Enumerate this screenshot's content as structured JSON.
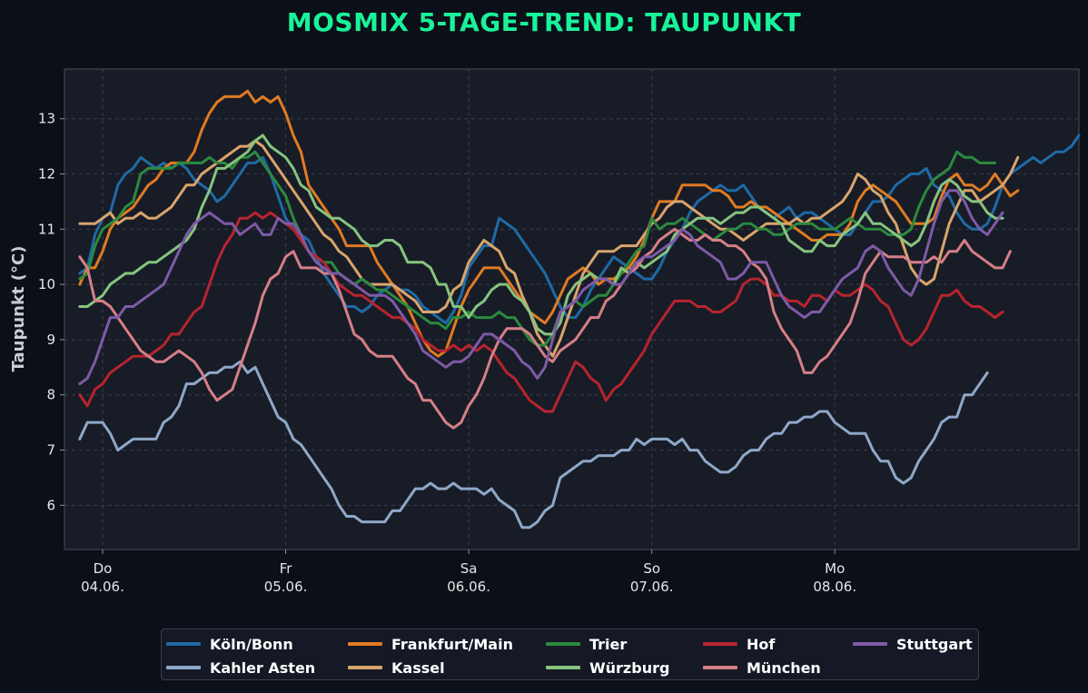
{
  "title": "MOSMIX 5-TAGE-TREND: TAUPUNKT",
  "colors": {
    "background": "#0b0f18",
    "plot_background": "#171c27",
    "title": "#19f29a"
  },
  "chart_data": {
    "type": "line",
    "title": "MOSMIX 5-TAGE-TREND: TAUPUNKT",
    "xlabel": "",
    "ylabel": "Taupunkt (°C)",
    "ylim": [
      5.2,
      13.9
    ],
    "yticks": [
      6,
      7,
      8,
      9,
      10,
      11,
      12,
      13
    ],
    "xlim": [
      "2024-06-03 19:00",
      "2024-06-09 08:00"
    ],
    "x_start": "2024-06-03 21:00",
    "x_step_hours": 1,
    "xticks": [
      {
        "at": "2024-06-04 00:00",
        "label": "Do\n04.06."
      },
      {
        "at": "2024-06-05 00:00",
        "label": "Fr\n05.06."
      },
      {
        "at": "2024-06-06 00:00",
        "label": "Sa\n06.06."
      },
      {
        "at": "2024-06-07 00:00",
        "label": "So\n07.06."
      },
      {
        "at": "2024-06-08 00:00",
        "label": "Mo\n08.06."
      }
    ],
    "grid": true,
    "legend_position": "bottom-center",
    "series": [
      {
        "name": "Köln/Bonn",
        "color": "#1f6aa5",
        "values": [
          10.2,
          10.3,
          10.9,
          11.2,
          11.3,
          11.8,
          12.0,
          12.1,
          12.3,
          12.2,
          12.1,
          12.2,
          12.1,
          12.2,
          12.1,
          11.9,
          11.8,
          11.7,
          11.5,
          11.6,
          11.8,
          12.0,
          12.2,
          12.2,
          12.3,
          12.0,
          11.6,
          11.2,
          11.0,
          10.9,
          10.8,
          10.5,
          10.2,
          10.0,
          9.8,
          9.6,
          9.6,
          9.5,
          9.6,
          9.8,
          9.9,
          10.0,
          9.9,
          9.9,
          9.8,
          9.6,
          9.5,
          9.4,
          9.3,
          9.5,
          9.8,
          10.3,
          10.5,
          10.7,
          10.7,
          11.2,
          11.1,
          11.0,
          10.8,
          10.6,
          10.4,
          10.2,
          9.9,
          9.6,
          9.4,
          9.4,
          9.6,
          9.9,
          10.1,
          10.3,
          10.5,
          10.4,
          10.3,
          10.2,
          10.1,
          10.1,
          10.3,
          10.6,
          10.8,
          11.0,
          11.3,
          11.5,
          11.6,
          11.7,
          11.8,
          11.7,
          11.7,
          11.8,
          11.6,
          11.4,
          11.3,
          11.2,
          11.3,
          11.4,
          11.2,
          11.3,
          11.3,
          11.2,
          11.1,
          11.0,
          10.9,
          10.9,
          11.1,
          11.3,
          11.5,
          11.5,
          11.6,
          11.8,
          11.9,
          12.0,
          12.0,
          12.1,
          11.8,
          11.7,
          11.6,
          11.3,
          11.1,
          11.0,
          11.0,
          11.1,
          11.4,
          11.8,
          12.0,
          12.1,
          12.2,
          12.3,
          12.2,
          12.3,
          12.4,
          12.4,
          12.5,
          12.7
        ]
      },
      {
        "name": "Kahler Asten",
        "color": "#8fa8c8",
        "values": [
          7.2,
          7.5,
          7.5,
          7.5,
          7.3,
          7.0,
          7.1,
          7.2,
          7.2,
          7.2,
          7.2,
          7.5,
          7.6,
          7.8,
          8.2,
          8.2,
          8.3,
          8.4,
          8.4,
          8.5,
          8.5,
          8.6,
          8.4,
          8.5,
          8.2,
          7.9,
          7.6,
          7.5,
          7.2,
          7.1,
          6.9,
          6.7,
          6.5,
          6.3,
          6.0,
          5.8,
          5.8,
          5.7,
          5.7,
          5.7,
          5.7,
          5.9,
          5.9,
          6.1,
          6.3,
          6.3,
          6.4,
          6.3,
          6.3,
          6.4,
          6.3,
          6.3,
          6.3,
          6.2,
          6.3,
          6.1,
          6.0,
          5.9,
          5.6,
          5.6,
          5.7,
          5.9,
          6.0,
          6.5,
          6.6,
          6.7,
          6.8,
          6.8,
          6.9,
          6.9,
          6.9,
          7.0,
          7.0,
          7.2,
          7.1,
          7.2,
          7.2,
          7.2,
          7.1,
          7.2,
          7.0,
          7.0,
          6.8,
          6.7,
          6.6,
          6.6,
          6.7,
          6.9,
          7.0,
          7.0,
          7.2,
          7.3,
          7.3,
          7.5,
          7.5,
          7.6,
          7.6,
          7.7,
          7.7,
          7.5,
          7.4,
          7.3,
          7.3,
          7.3,
          7.0,
          6.8,
          6.8,
          6.5,
          6.4,
          6.5,
          6.8,
          7.0,
          7.2,
          7.5,
          7.6,
          7.6,
          8.0,
          8.0,
          8.2,
          8.4
        ]
      },
      {
        "name": "Frankfurt/Main",
        "color": "#e07b22",
        "values": [
          10.0,
          10.3,
          10.3,
          10.6,
          11.0,
          11.2,
          11.3,
          11.4,
          11.6,
          11.8,
          11.9,
          12.1,
          12.2,
          12.2,
          12.2,
          12.4,
          12.8,
          13.1,
          13.3,
          13.4,
          13.4,
          13.4,
          13.5,
          13.3,
          13.4,
          13.3,
          13.4,
          13.1,
          12.7,
          12.4,
          11.8,
          11.6,
          11.4,
          11.2,
          11.0,
          10.7,
          10.7,
          10.7,
          10.7,
          10.4,
          10.2,
          10.0,
          9.8,
          9.6,
          9.3,
          9.0,
          8.8,
          8.7,
          8.8,
          9.2,
          9.6,
          9.9,
          10.1,
          10.3,
          10.3,
          10.3,
          10.1,
          9.9,
          9.7,
          9.5,
          9.4,
          9.3,
          9.5,
          9.8,
          10.1,
          10.2,
          10.3,
          10.2,
          10.0,
          10.1,
          10.1,
          10.2,
          10.3,
          10.5,
          10.8,
          11.2,
          11.5,
          11.5,
          11.5,
          11.8,
          11.8,
          11.8,
          11.8,
          11.7,
          11.7,
          11.6,
          11.4,
          11.4,
          11.5,
          11.4,
          11.4,
          11.3,
          11.2,
          11.1,
          11.0,
          10.9,
          10.8,
          10.8,
          10.9,
          10.9,
          10.9,
          11.1,
          11.5,
          11.7,
          11.8,
          11.7,
          11.6,
          11.5,
          11.3,
          11.1,
          11.1,
          11.1,
          11.2,
          11.6,
          11.9,
          12.0,
          11.8,
          11.8,
          11.7,
          11.8,
          12.0,
          11.8,
          11.6,
          11.7
        ]
      },
      {
        "name": "Kassel",
        "color": "#d9a46c",
        "values": [
          11.1,
          11.1,
          11.1,
          11.2,
          11.3,
          11.1,
          11.2,
          11.2,
          11.3,
          11.2,
          11.2,
          11.3,
          11.4,
          11.6,
          11.8,
          11.8,
          12.0,
          12.1,
          12.2,
          12.3,
          12.4,
          12.5,
          12.5,
          12.6,
          12.5,
          12.3,
          12.1,
          11.9,
          11.7,
          11.5,
          11.3,
          11.1,
          10.9,
          10.8,
          10.6,
          10.5,
          10.3,
          10.1,
          10.0,
          10.0,
          10.0,
          10.0,
          9.9,
          9.8,
          9.7,
          9.5,
          9.5,
          9.5,
          9.6,
          9.9,
          10.0,
          10.4,
          10.6,
          10.8,
          10.7,
          10.6,
          10.3,
          10.2,
          9.8,
          9.5,
          9.1,
          8.9,
          8.7,
          9.0,
          9.4,
          9.8,
          10.2,
          10.4,
          10.6,
          10.6,
          10.6,
          10.7,
          10.7,
          10.7,
          10.9,
          11.1,
          11.2,
          11.4,
          11.5,
          11.5,
          11.4,
          11.3,
          11.2,
          11.1,
          11.0,
          11.0,
          10.9,
          10.8,
          10.9,
          11.0,
          11.1,
          11.1,
          11.1,
          11.1,
          11.2,
          11.1,
          11.2,
          11.2,
          11.3,
          11.4,
          11.5,
          11.7,
          12.0,
          11.9,
          11.7,
          11.6,
          11.3,
          11.1,
          10.7,
          10.3,
          10.1,
          10.0,
          10.1,
          10.6,
          11.1,
          11.4,
          11.7,
          11.7,
          11.5,
          11.6,
          11.7,
          11.8,
          12.0,
          12.3
        ]
      },
      {
        "name": "Trier",
        "color": "#2b8a3e",
        "values": [
          10.1,
          10.2,
          10.7,
          11.0,
          11.1,
          11.2,
          11.4,
          11.5,
          12.0,
          12.1,
          12.1,
          12.1,
          12.1,
          12.2,
          12.2,
          12.2,
          12.2,
          12.3,
          12.2,
          12.2,
          12.1,
          12.3,
          12.3,
          12.4,
          12.2,
          12.0,
          11.8,
          11.6,
          11.2,
          10.9,
          10.6,
          10.5,
          10.4,
          10.4,
          10.2,
          10.1,
          10.0,
          10.1,
          10.0,
          9.9,
          9.9,
          9.8,
          9.7,
          9.6,
          9.5,
          9.4,
          9.3,
          9.3,
          9.2,
          9.4,
          9.4,
          9.5,
          9.4,
          9.4,
          9.4,
          9.5,
          9.4,
          9.4,
          9.2,
          9.0,
          8.9,
          8.9,
          9.1,
          9.5,
          9.6,
          9.7,
          9.6,
          9.7,
          9.8,
          9.8,
          10.0,
          10.2,
          10.4,
          10.6,
          10.7,
          11.2,
          11.0,
          11.1,
          11.1,
          11.2,
          11.1,
          11.0,
          10.9,
          10.8,
          10.9,
          11.0,
          11.0,
          11.1,
          11.1,
          11.0,
          11.0,
          10.9,
          10.9,
          11.0,
          11.1,
          11.1,
          11.1,
          11.0,
          11.0,
          11.0,
          11.1,
          11.2,
          11.1,
          11.0,
          11.0,
          11.0,
          10.9,
          10.9,
          10.9,
          11.0,
          11.4,
          11.7,
          11.9,
          12.0,
          12.1,
          12.4,
          12.3,
          12.3,
          12.2,
          12.2,
          12.2
        ]
      },
      {
        "name": "Würzburg",
        "color": "#86c47e",
        "values": [
          9.6,
          9.6,
          9.7,
          9.8,
          10.0,
          10.1,
          10.2,
          10.2,
          10.3,
          10.4,
          10.4,
          10.5,
          10.6,
          10.7,
          10.8,
          11.0,
          11.4,
          11.7,
          12.1,
          12.1,
          12.2,
          12.3,
          12.4,
          12.6,
          12.7,
          12.5,
          12.4,
          12.3,
          12.1,
          11.8,
          11.7,
          11.4,
          11.3,
          11.2,
          11.2,
          11.1,
          11.0,
          10.8,
          10.7,
          10.7,
          10.8,
          10.8,
          10.7,
          10.4,
          10.4,
          10.4,
          10.3,
          10.0,
          10.0,
          9.6,
          9.6,
          9.4,
          9.6,
          9.7,
          9.9,
          10.0,
          10.0,
          9.8,
          9.7,
          9.5,
          9.2,
          9.1,
          9.1,
          9.3,
          9.8,
          10.0,
          10.1,
          10.2,
          10.1,
          10.1,
          10.0,
          10.3,
          10.2,
          10.4,
          10.3,
          10.4,
          10.5,
          10.6,
          10.9,
          11.0,
          11.1,
          11.2,
          11.2,
          11.2,
          11.1,
          11.2,
          11.3,
          11.3,
          11.4,
          11.4,
          11.3,
          11.2,
          11.1,
          10.8,
          10.7,
          10.6,
          10.6,
          10.8,
          10.7,
          10.7,
          10.9,
          11.0,
          11.1,
          11.3,
          11.1,
          11.1,
          11.0,
          10.9,
          10.8,
          10.7,
          10.8,
          11.1,
          11.5,
          11.8,
          11.9,
          11.8,
          11.6,
          11.5,
          11.5,
          11.3,
          11.2,
          11.2
        ]
      },
      {
        "name": "Hof",
        "color": "#b7242e",
        "values": [
          8.0,
          7.8,
          8.1,
          8.2,
          8.4,
          8.5,
          8.6,
          8.7,
          8.7,
          8.7,
          8.8,
          8.9,
          9.1,
          9.1,
          9.3,
          9.5,
          9.6,
          10.0,
          10.4,
          10.7,
          10.9,
          11.2,
          11.2,
          11.3,
          11.2,
          11.3,
          11.2,
          11.1,
          11.0,
          10.8,
          10.6,
          10.5,
          10.4,
          10.2,
          10.0,
          9.9,
          9.8,
          9.8,
          9.7,
          9.6,
          9.5,
          9.4,
          9.4,
          9.3,
          9.2,
          9.0,
          8.9,
          8.8,
          8.8,
          8.9,
          8.8,
          8.9,
          8.8,
          8.9,
          8.8,
          8.6,
          8.4,
          8.3,
          8.1,
          7.9,
          7.8,
          7.7,
          7.7,
          8.0,
          8.3,
          8.6,
          8.5,
          8.3,
          8.2,
          7.9,
          8.1,
          8.2,
          8.4,
          8.6,
          8.8,
          9.1,
          9.3,
          9.5,
          9.7,
          9.7,
          9.7,
          9.6,
          9.6,
          9.5,
          9.5,
          9.6,
          9.7,
          10.0,
          10.1,
          10.1,
          10.0,
          9.8,
          9.8,
          9.7,
          9.7,
          9.6,
          9.8,
          9.8,
          9.7,
          9.9,
          9.8,
          9.8,
          9.9,
          10.0,
          9.9,
          9.7,
          9.6,
          9.3,
          9.0,
          8.9,
          9.0,
          9.2,
          9.5,
          9.8,
          9.8,
          9.9,
          9.7,
          9.6,
          9.6,
          9.5,
          9.4,
          9.5
        ]
      },
      {
        "name": "München",
        "color": "#d67f86",
        "values": [
          10.5,
          10.3,
          9.7,
          9.7,
          9.6,
          9.4,
          9.2,
          9.0,
          8.8,
          8.7,
          8.6,
          8.6,
          8.7,
          8.8,
          8.7,
          8.6,
          8.4,
          8.1,
          7.9,
          8.0,
          8.1,
          8.5,
          8.9,
          9.3,
          9.8,
          10.1,
          10.2,
          10.5,
          10.6,
          10.3,
          10.3,
          10.3,
          10.2,
          10.2,
          9.9,
          9.5,
          9.1,
          9.0,
          8.8,
          8.7,
          8.7,
          8.7,
          8.5,
          8.3,
          8.2,
          7.9,
          7.9,
          7.7,
          7.5,
          7.4,
          7.5,
          7.8,
          8.0,
          8.3,
          8.7,
          9.0,
          9.2,
          9.2,
          9.2,
          9.1,
          8.9,
          8.7,
          8.6,
          8.8,
          8.9,
          9.0,
          9.2,
          9.4,
          9.4,
          9.7,
          9.8,
          10.0,
          10.2,
          10.3,
          10.5,
          10.6,
          10.8,
          10.9,
          11.0,
          10.9,
          10.8,
          10.8,
          10.9,
          10.8,
          10.8,
          10.7,
          10.7,
          10.6,
          10.4,
          10.3,
          10.1,
          9.5,
          9.2,
          9.0,
          8.8,
          8.4,
          8.4,
          8.6,
          8.7,
          8.9,
          9.1,
          9.3,
          9.7,
          10.2,
          10.4,
          10.6,
          10.5,
          10.5,
          10.5,
          10.4,
          10.4,
          10.4,
          10.5,
          10.4,
          10.6,
          10.6,
          10.8,
          10.6,
          10.5,
          10.4,
          10.3,
          10.3,
          10.6
        ]
      },
      {
        "name": "Stuttgart",
        "color": "#7e5aa6",
        "values": [
          8.2,
          8.3,
          8.6,
          9.0,
          9.4,
          9.4,
          9.6,
          9.6,
          9.7,
          9.8,
          9.9,
          10.0,
          10.3,
          10.6,
          10.9,
          11.1,
          11.2,
          11.3,
          11.2,
          11.1,
          11.1,
          10.9,
          11.0,
          11.1,
          10.9,
          10.9,
          11.2,
          11.1,
          11.1,
          10.9,
          10.6,
          10.4,
          10.3,
          10.2,
          10.2,
          10.1,
          10.0,
          9.9,
          9.8,
          9.8,
          9.8,
          9.7,
          9.5,
          9.3,
          9.1,
          8.8,
          8.7,
          8.6,
          8.5,
          8.6,
          8.6,
          8.7,
          8.9,
          9.1,
          9.1,
          9.0,
          8.9,
          8.8,
          8.6,
          8.5,
          8.3,
          8.5,
          9.0,
          9.5,
          9.6,
          9.7,
          9.9,
          10.0,
          10.1,
          10.1,
          10.0,
          10.0,
          10.2,
          10.4,
          10.5,
          10.5,
          10.6,
          10.7,
          10.8,
          11.0,
          10.9,
          10.7,
          10.6,
          10.5,
          10.4,
          10.1,
          10.1,
          10.2,
          10.4,
          10.4,
          10.4,
          10.1,
          9.8,
          9.6,
          9.5,
          9.4,
          9.5,
          9.5,
          9.7,
          9.9,
          10.1,
          10.2,
          10.3,
          10.6,
          10.7,
          10.6,
          10.3,
          10.1,
          9.9,
          9.8,
          10.1,
          10.6,
          11.1,
          11.5,
          11.7,
          11.7,
          11.5,
          11.2,
          11.0,
          10.9,
          11.1,
          11.3
        ]
      }
    ]
  }
}
